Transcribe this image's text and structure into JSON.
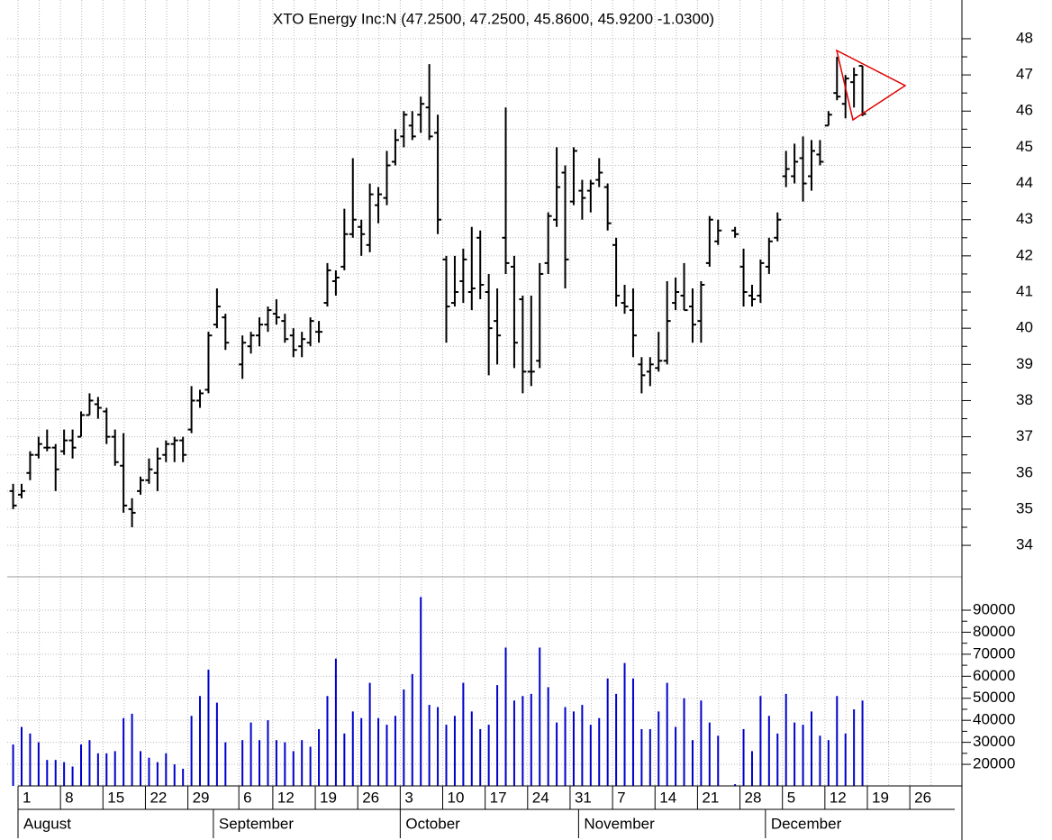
{
  "chart_data": {
    "type": "ohlc",
    "subtitle": "XTO Energy Inc:N (47.2500, 47.2500, 45.8600, 45.9200 -1.0300)",
    "x": [
      "07-29",
      "08-01",
      "08-02",
      "08-03",
      "08-04",
      "08-05",
      "08-08",
      "08-09",
      "08-10",
      "08-11",
      "08-12",
      "08-15",
      "08-16",
      "08-17",
      "08-18",
      "08-19",
      "08-22",
      "08-23",
      "08-24",
      "08-25",
      "08-26",
      "08-29",
      "08-30",
      "08-31",
      "09-01",
      "09-02",
      "09-06",
      "09-07",
      "09-08",
      "09-09",
      "09-12",
      "09-13",
      "09-14",
      "09-15",
      "09-16",
      "09-19",
      "09-20",
      "09-21",
      "09-22",
      "09-23",
      "09-26",
      "09-27",
      "09-28",
      "09-29",
      "09-30",
      "10-03",
      "10-04",
      "10-05",
      "10-06",
      "10-07",
      "10-10",
      "10-11",
      "10-12",
      "10-13",
      "10-14",
      "10-17",
      "10-18",
      "10-19",
      "10-20",
      "10-21",
      "10-24",
      "10-25",
      "10-26",
      "10-27",
      "10-28",
      "10-31",
      "11-01",
      "11-02",
      "11-03",
      "11-04",
      "11-07",
      "11-08",
      "11-09",
      "11-10",
      "11-11",
      "11-14",
      "11-15",
      "11-16",
      "11-17",
      "11-18",
      "11-21",
      "11-22",
      "11-23",
      "11-25",
      "11-28",
      "11-29",
      "11-30",
      "12-01",
      "12-02",
      "12-05",
      "12-06",
      "12-07",
      "12-08",
      "12-09",
      "12-12",
      "12-13",
      "12-14",
      "12-15",
      "12-16"
    ],
    "open": [
      35.5,
      35.4,
      36.0,
      36.5,
      36.7,
      36.7,
      36.6,
      36.9,
      37.0,
      37.6,
      37.9,
      37.7,
      37.0,
      36.2,
      35.0,
      35.5,
      35.8,
      36.0,
      36.5,
      36.8,
      36.9,
      37.2,
      38.0,
      38.3,
      40.1,
      40.3,
      39.0,
      39.5,
      39.8,
      40.1,
      40.4,
      40.2,
      39.8,
      39.5,
      39.6,
      39.9,
      40.7,
      41.3,
      41.7,
      42.6,
      42.8,
      42.3,
      43.4,
      43.6,
      44.6,
      45.3,
      45.6,
      45.9,
      46.1,
      45.4,
      41.9,
      40.7,
      41.3,
      41.0,
      42.5,
      41.0,
      40.2,
      42.5,
      41.7,
      40.8,
      38.8,
      39.1,
      41.8,
      43.0,
      44.3,
      43.5,
      43.8,
      43.8,
      44.1,
      43.9,
      42.3,
      40.7,
      40.5,
      39.0,
      38.8,
      38.9,
      39.1,
      40.7,
      40.9,
      40.6,
      40.2,
      41.8,
      42.4,
      42.7,
      41.7,
      40.9,
      40.9,
      41.7,
      42.5,
      44.2,
      44.2,
      44.7,
      44.2,
      44.8,
      45.6,
      46.5,
      46.2,
      46.8,
      47.25
    ],
    "high": [
      35.7,
      35.7,
      36.6,
      37.0,
      37.2,
      36.8,
      37.2,
      37.2,
      37.7,
      38.2,
      38.1,
      37.8,
      37.2,
      37.1,
      35.3,
      35.9,
      36.4,
      36.7,
      36.9,
      37.0,
      37.0,
      38.4,
      38.3,
      39.9,
      41.1,
      40.4,
      39.8,
      39.9,
      40.3,
      40.6,
      40.8,
      40.4,
      40.0,
      39.9,
      40.3,
      40.2,
      41.8,
      41.6,
      43.3,
      44.7,
      43.0,
      44.0,
      43.9,
      44.9,
      45.5,
      46.0,
      46.0,
      46.4,
      47.3,
      45.9,
      42.0,
      42.0,
      42.2,
      42.8,
      42.7,
      41.5,
      41.1,
      46.1,
      42.0,
      40.9,
      40.9,
      41.8,
      43.2,
      45.0,
      44.5,
      45.0,
      44.1,
      44.1,
      44.7,
      44.0,
      42.5,
      41.2,
      41.1,
      39.2,
      39.2,
      39.9,
      41.3,
      41.4,
      41.8,
      41.1,
      41.3,
      43.1,
      43.0,
      42.8,
      42.2,
      41.2,
      41.9,
      42.5,
      43.2,
      44.9,
      45.1,
      45.3,
      45.2,
      45.2,
      46.0,
      47.5,
      47.0,
      47.2,
      47.25
    ],
    "low": [
      35.0,
      35.3,
      35.8,
      36.4,
      36.6,
      35.5,
      36.5,
      36.4,
      37.0,
      37.6,
      37.5,
      36.8,
      36.2,
      34.9,
      34.5,
      35.4,
      35.7,
      35.5,
      36.3,
      36.3,
      36.3,
      37.1,
      37.8,
      38.2,
      40.0,
      39.4,
      38.6,
      39.3,
      39.5,
      39.9,
      40.1,
      39.6,
      39.2,
      39.2,
      39.5,
      39.6,
      40.6,
      40.9,
      41.6,
      42.5,
      42.0,
      42.1,
      42.9,
      43.4,
      44.5,
      45.0,
      45.2,
      45.4,
      45.2,
      42.6,
      39.6,
      40.6,
      40.7,
      40.5,
      40.8,
      38.7,
      39.0,
      41.5,
      38.9,
      38.2,
      38.4,
      38.9,
      41.5,
      42.8,
      41.1,
      43.4,
      43.0,
      43.2,
      43.9,
      42.7,
      40.6,
      40.4,
      39.2,
      38.2,
      38.4,
      38.8,
      39.0,
      40.5,
      40.5,
      39.6,
      39.6,
      41.7,
      42.3,
      42.5,
      40.6,
      40.6,
      40.7,
      41.5,
      42.4,
      43.9,
      44.0,
      43.5,
      43.8,
      44.5,
      45.6,
      46.3,
      45.8,
      46.1,
      45.86
    ],
    "close": [
      35.1,
      35.5,
      36.5,
      36.8,
      36.7,
      36.1,
      36.9,
      36.7,
      37.6,
      38.0,
      37.8,
      37.0,
      36.3,
      35.1,
      34.9,
      35.8,
      36.1,
      36.4,
      36.8,
      36.9,
      36.5,
      38.0,
      38.2,
      39.8,
      40.6,
      39.6,
      39.6,
      39.8,
      40.1,
      40.5,
      40.3,
      39.7,
      39.4,
      39.7,
      40.2,
      39.9,
      41.6,
      41.4,
      42.6,
      43.0,
      42.6,
      43.7,
      43.7,
      44.5,
      45.2,
      45.9,
      45.3,
      46.2,
      45.3,
      43.0,
      40.6,
      41.0,
      41.9,
      41.1,
      41.2,
      40.0,
      39.8,
      41.8,
      39.6,
      38.8,
      38.8,
      41.5,
      43.1,
      43.9,
      41.9,
      44.9,
      43.6,
      44.0,
      44.3,
      42.9,
      40.9,
      40.6,
      39.8,
      38.7,
      39.0,
      39.1,
      40.2,
      41.0,
      40.5,
      40.1,
      41.2,
      43.0,
      42.7,
      42.6,
      41.0,
      40.8,
      41.8,
      42.4,
      43.0,
      44.4,
      44.6,
      44.0,
      44.9,
      44.6,
      45.9,
      46.4,
      46.9,
      47.0,
      45.92
    ],
    "color": "#000000",
    "ylim": [
      33.13,
      49.07
    ],
    "yticks": [
      34,
      35,
      36,
      37,
      38,
      39,
      40,
      41,
      42,
      43,
      44,
      45,
      46,
      47,
      48
    ],
    "volume": {
      "values": [
        29000,
        37000,
        34000,
        30000,
        22000,
        22000,
        21000,
        19000,
        29000,
        31000,
        25000,
        25000,
        26000,
        41000,
        43000,
        26000,
        23000,
        21000,
        25000,
        20000,
        18000,
        42000,
        51000,
        63000,
        48000,
        30000,
        31000,
        39000,
        31000,
        40000,
        31000,
        30000,
        26000,
        31000,
        28000,
        36000,
        51000,
        68000,
        34000,
        44000,
        41000,
        57000,
        41000,
        38000,
        42000,
        54000,
        61000,
        96000,
        47000,
        46000,
        38000,
        42000,
        57000,
        44000,
        36000,
        38000,
        56000,
        73000,
        49000,
        51000,
        52000,
        73000,
        55000,
        39000,
        46000,
        44000,
        47000,
        38000,
        41000,
        59000,
        52000,
        66000,
        59000,
        36000,
        36000,
        44000,
        57000,
        37000,
        50000,
        31000,
        49000,
        39000,
        33000,
        11000,
        36000,
        26000,
        51000,
        42000,
        34000,
        52000,
        39000,
        38000,
        44000,
        33000,
        31000,
        51000,
        34000,
        45000,
        49000
      ],
      "color": "#0000cc",
      "ylim": [
        10200,
        105150
      ],
      "yticks": [
        20000,
        30000,
        40000,
        50000,
        60000,
        70000,
        80000,
        90000
      ]
    },
    "xticks": [
      {
        "value": "08-01",
        "label": "1"
      },
      {
        "value": "08-08",
        "label": "8"
      },
      {
        "value": "08-15",
        "label": "15"
      },
      {
        "value": "08-22",
        "label": "22"
      },
      {
        "value": "08-29",
        "label": "29"
      },
      {
        "value": "09-06",
        "label": "6"
      },
      {
        "value": "09-12",
        "label": "12"
      },
      {
        "value": "09-19",
        "label": "19"
      },
      {
        "value": "09-26",
        "label": "26"
      },
      {
        "value": "10-03",
        "label": "3"
      },
      {
        "value": "10-10",
        "label": "10"
      },
      {
        "value": "10-17",
        "label": "17"
      },
      {
        "value": "10-24",
        "label": "24"
      },
      {
        "value": "10-31",
        "label": "31"
      },
      {
        "value": "11-07",
        "label": "7"
      },
      {
        "value": "11-14",
        "label": "14"
      },
      {
        "value": "11-21",
        "label": "21"
      },
      {
        "value": "11-28",
        "label": "28"
      },
      {
        "value": "12-05",
        "label": "5"
      },
      {
        "value": "12-12",
        "label": "12"
      },
      {
        "value": "12-19",
        "label": "19"
      },
      {
        "value": "12-26",
        "label": "26"
      }
    ],
    "months": [
      {
        "value": "08-01",
        "label": "August"
      },
      {
        "value": "09-01",
        "label": "September"
      },
      {
        "value": "10-03",
        "label": "October"
      },
      {
        "value": "11-01",
        "label": "November"
      },
      {
        "value": "12-01",
        "label": "December"
      }
    ],
    "grid": true
  }
}
